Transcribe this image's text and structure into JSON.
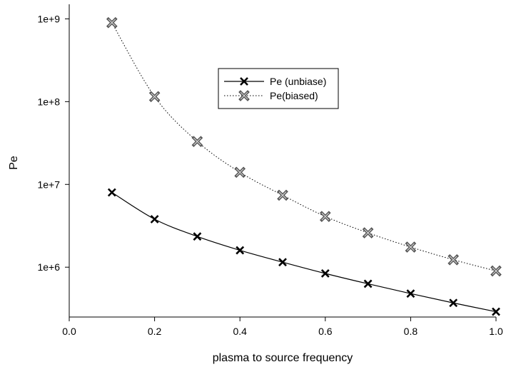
{
  "chart_data": {
    "type": "line",
    "xlabel": "plasma  to source frequency",
    "ylabel": "Pe",
    "y_scale": "log",
    "xlim": [
      0.0,
      1.0
    ],
    "ylim": [
      250000,
      1500000000
    ],
    "x_ticks": [
      0.0,
      0.2,
      0.4,
      0.6,
      0.8,
      1.0
    ],
    "x_tick_labels": [
      "0.0",
      "0.2",
      "0.4",
      "0.6",
      "0.8",
      "1.0"
    ],
    "y_ticks": [
      1000000,
      10000000,
      100000000,
      1000000000
    ],
    "y_tick_labels": [
      "1e+6",
      "1e+7",
      "1e+8",
      "1e+9"
    ],
    "grid": false,
    "legend_position": "top-center",
    "x": [
      0.1,
      0.2,
      0.3,
      0.4,
      0.5,
      0.6,
      0.7,
      0.8,
      0.9,
      1.0
    ],
    "series": [
      {
        "name": "Pe (unbiase)",
        "line_style": "solid",
        "marker": "x",
        "color": "#000000",
        "values": [
          8000000,
          3800000,
          2350000,
          1600000,
          1150000,
          840000,
          630000,
          480000,
          370000,
          290000
        ]
      },
      {
        "name": "Pe(biased)",
        "line_style": "dotted",
        "marker": "x",
        "color": "#555555",
        "values": [
          900000000,
          115000000,
          33000000,
          14000000,
          7400000,
          4100000,
          2600000,
          1750000,
          1230000,
          900000
        ]
      }
    ]
  }
}
